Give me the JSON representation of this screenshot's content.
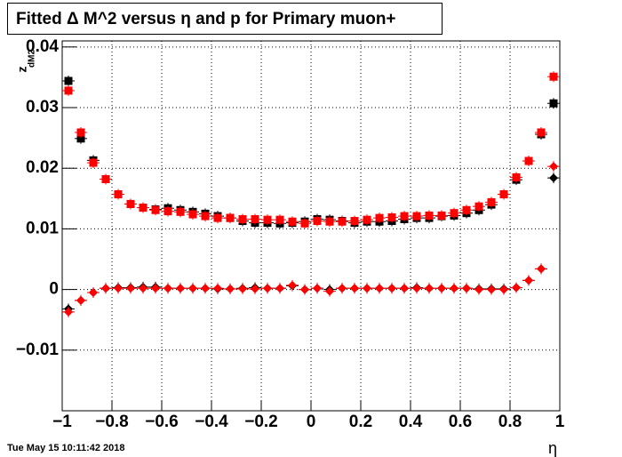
{
  "chart_data": {
    "type": "scatter",
    "title": "Fitted Δ M^2 versus η and p for Primary muon+",
    "x_label": "η",
    "y_label": "z",
    "y_label_sub": "dM2",
    "timestamp": "Tue May 15 10:11:42 2018",
    "grid": true,
    "xlim": [
      -1,
      1
    ],
    "ylim": [
      -0.02,
      0.041
    ],
    "xticks": [
      {
        "value": -1,
        "label": "−1"
      },
      {
        "value": -0.8,
        "label": "−0.8"
      },
      {
        "value": -0.6,
        "label": "−0.6"
      },
      {
        "value": -0.4,
        "label": "−0.4"
      },
      {
        "value": -0.2,
        "label": "−0.2"
      },
      0,
      0.2,
      0.4,
      0.6,
      0.8,
      1
    ],
    "yticks": [
      {
        "value": -0.01,
        "label": "−0.01"
      },
      0,
      0.01,
      0.02,
      0.03,
      0.04
    ],
    "x": [
      -0.975,
      -0.925,
      -0.875,
      -0.825,
      -0.775,
      -0.725,
      -0.675,
      -0.625,
      -0.575,
      -0.525,
      -0.475,
      -0.425,
      -0.375,
      -0.325,
      -0.275,
      -0.225,
      -0.175,
      -0.125,
      -0.075,
      -0.025,
      0.025,
      0.075,
      0.125,
      0.175,
      0.225,
      0.275,
      0.325,
      0.375,
      0.425,
      0.475,
      0.525,
      0.575,
      0.625,
      0.675,
      0.725,
      0.775,
      0.825,
      0.875,
      0.925,
      0.975
    ],
    "series": [
      {
        "color": "#000000",
        "marker": "square",
        "values": [
          0.0344,
          0.0249,
          0.0213,
          0.0182,
          0.0157,
          0.0141,
          0.0135,
          0.0132,
          0.0134,
          0.0131,
          0.0128,
          0.0125,
          0.0121,
          0.0118,
          0.0113,
          0.011,
          0.011,
          0.0109,
          0.011,
          0.0112,
          0.0116,
          0.0115,
          0.0113,
          0.011,
          0.0112,
          0.0112,
          0.0113,
          0.0116,
          0.0118,
          0.0118,
          0.0121,
          0.0122,
          0.0126,
          0.0131,
          0.014,
          0.0157,
          0.0181,
          0.0212,
          0.0256,
          0.0307
        ]
      },
      {
        "color": "#ff0000",
        "marker": "square",
        "values": [
          0.0328,
          0.0259,
          0.0209,
          0.0182,
          0.0157,
          0.0141,
          0.0135,
          0.0131,
          0.0129,
          0.0128,
          0.0124,
          0.0121,
          0.0118,
          0.0118,
          0.0116,
          0.0116,
          0.0115,
          0.0115,
          0.0112,
          0.0109,
          0.0113,
          0.0112,
          0.0112,
          0.0113,
          0.0115,
          0.0118,
          0.0119,
          0.0121,
          0.0121,
          0.0122,
          0.0122,
          0.0126,
          0.0131,
          0.0137,
          0.0144,
          0.0157,
          0.0185,
          0.0212,
          0.0259,
          0.0351
        ]
      },
      {
        "color": "#000000",
        "marker": "diamond",
        "values": [
          -0.0032,
          -0.0018,
          -0.0005,
          0.0002,
          0.0003,
          0.0003,
          0.0004,
          0.0004,
          0.0002,
          0.0002,
          0.0002,
          0.0002,
          0.0001,
          0.0001,
          0.0002,
          0.0003,
          0.0002,
          0.0002,
          0.0006,
          0.0,
          0.0002,
          0.0,
          0.0002,
          0.0002,
          0.0002,
          0.0002,
          0.0002,
          0.0002,
          0.0003,
          0.0002,
          0.0002,
          0.0002,
          0.0002,
          0.0001,
          0.0001,
          0.0001,
          0.0003,
          0.0015,
          0.0034,
          0.0184
        ]
      },
      {
        "color": "#ff0000",
        "marker": "diamond",
        "values": [
          -0.0037,
          -0.0018,
          -0.0005,
          0.0002,
          0.0002,
          0.0002,
          0.0002,
          0.0002,
          0.0002,
          0.0002,
          0.0002,
          0.0002,
          0.0002,
          0.0001,
          0.0001,
          0.0001,
          0.0002,
          0.0002,
          0.0007,
          0.0,
          0.0002,
          -0.0003,
          0.0002,
          0.0002,
          0.0002,
          0.0002,
          0.0002,
          0.0002,
          0.0002,
          0.0002,
          0.0002,
          0.0002,
          0.0002,
          0.0,
          0.0,
          0.0,
          0.0003,
          0.0015,
          0.0034,
          0.0203
        ]
      }
    ]
  }
}
